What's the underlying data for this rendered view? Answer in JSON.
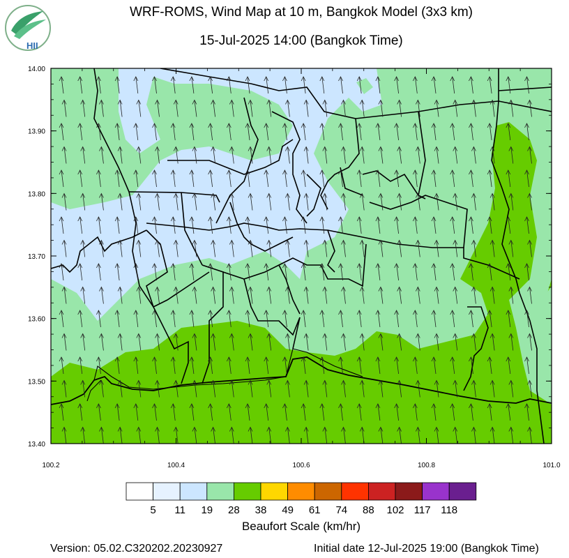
{
  "header": {
    "title_line_1": "WRF-ROMS, Wind Map at 10 m, Bangkok Model (3x3 km)",
    "title_line_2": "15-Jul-2025 14:00 (Bangkok Time)",
    "logo_text": "HII"
  },
  "map": {
    "lat_ticks": [
      "14.00",
      "13.90",
      "13.80",
      "13.70",
      "13.60",
      "13.50",
      "13.40"
    ],
    "lon_ticks": [
      "100.2",
      "100.4",
      "100.6",
      "100.8",
      "101.0"
    ],
    "lat_range": [
      13.4,
      14.0
    ],
    "lon_range": [
      100.2,
      101.0
    ],
    "wind_direction": "from south (arrows pointing north)",
    "colors": {
      "calm": "#cce6ff",
      "light": "#99e6aa",
      "moderate": "#66cc00",
      "boundary": "#000000"
    }
  },
  "colorbar": {
    "title": "Beaufort Scale (km/hr)",
    "labels": [
      "5",
      "11",
      "19",
      "28",
      "38",
      "49",
      "61",
      "74",
      "88",
      "102",
      "117",
      "118"
    ],
    "colors": [
      "#ffffff",
      "#e6f2ff",
      "#cce6ff",
      "#99e6aa",
      "#66cc00",
      "#ffd700",
      "#ff8c00",
      "#cc6600",
      "#ff3300",
      "#cc2222",
      "#8b1a1a",
      "#9933cc",
      "#6a1f8f"
    ]
  },
  "footer": {
    "version": "Version: 05.02.C320202.20230927",
    "initial_date": "Initial date 12-Jul-2025 19:00 (Bangkok Time)"
  }
}
